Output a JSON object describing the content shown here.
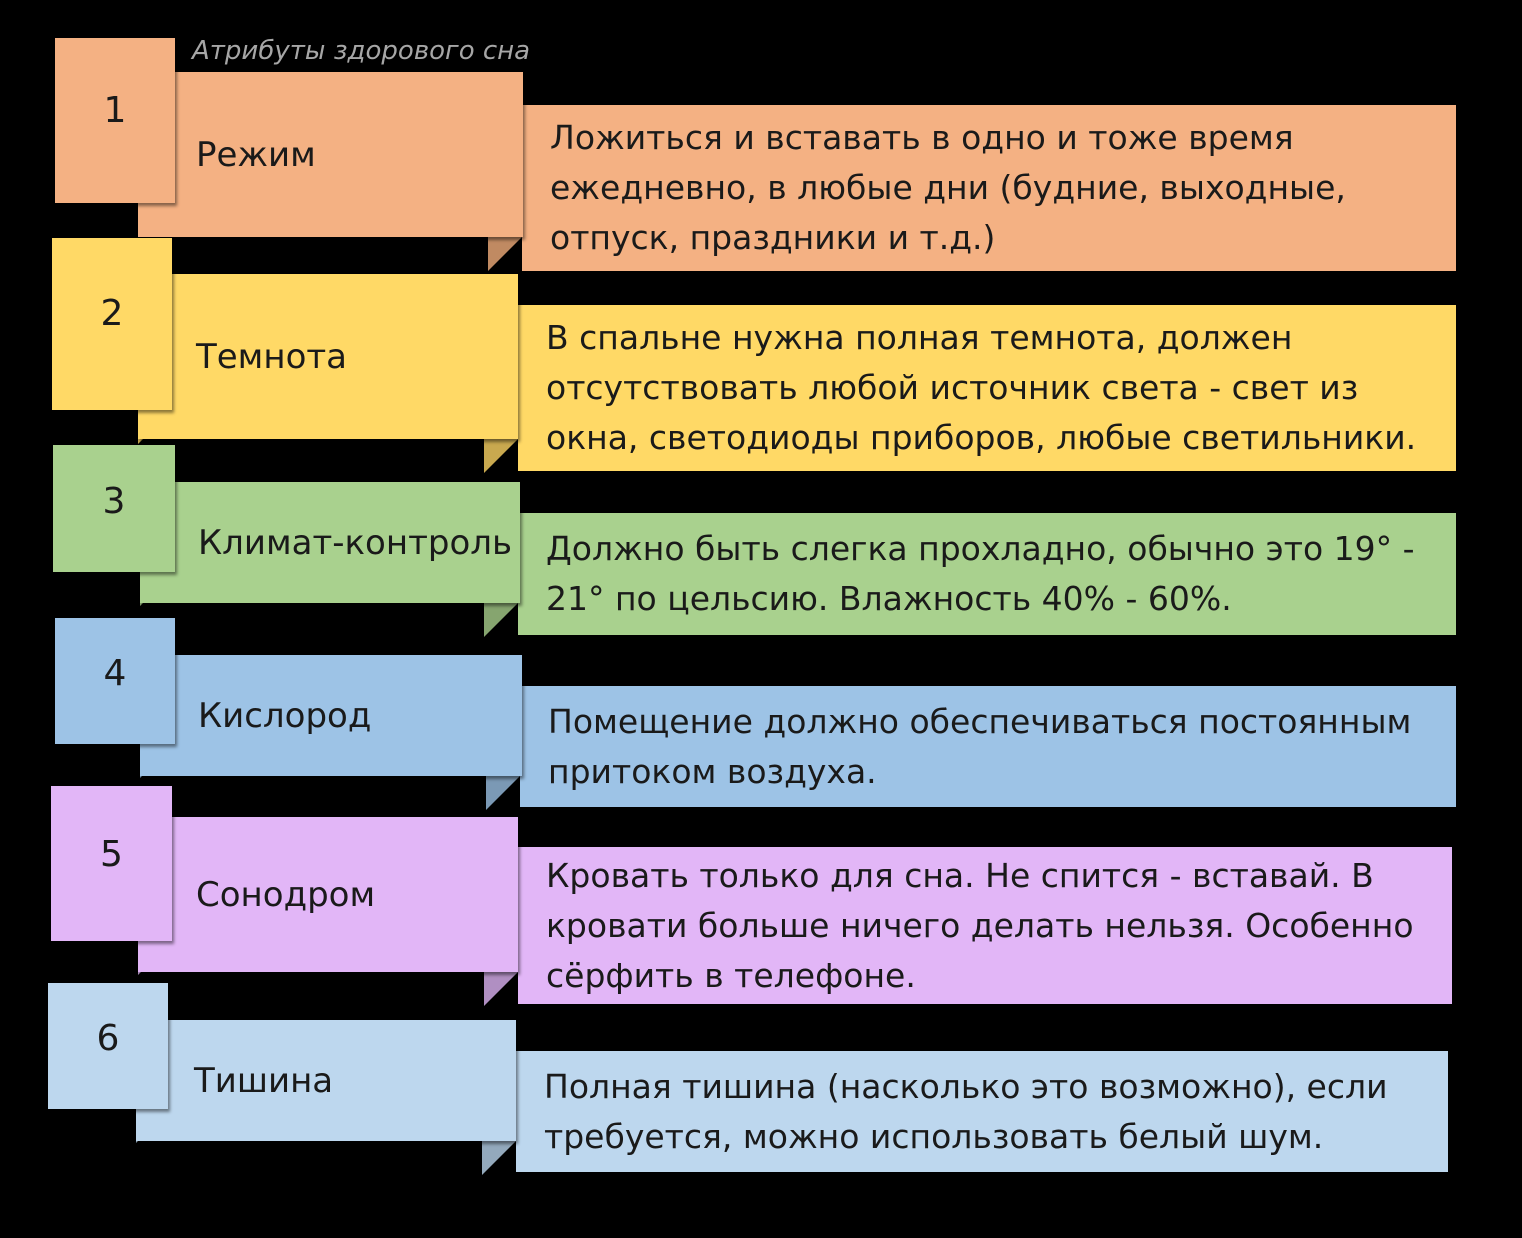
{
  "title": "Атрибуты здорового сна",
  "items": [
    {
      "number": "1",
      "label": "Режим",
      "description": "Ложиться и вставать в одно и тоже время ежедневно, в любые дни (будние, выходные, отпуск, праздники и т.д.)",
      "color": "#f4b183",
      "fold_color": "#c08a62"
    },
    {
      "number": "2",
      "label": "Темнота",
      "description": "В спальне нужна полная темнота, должен отсутствовать любой источник света - свет из окна, светодиоды приборов, любые светильники.",
      "color": "#ffd966",
      "fold_color": "#c9a94f"
    },
    {
      "number": "3",
      "label": "Климат-контроль",
      "description": "Должно быть слегка прохладно, обычно это 19° - 21° по цельсию. Влажность 40% - 60%.",
      "color": "#a9d18e",
      "fold_color": "#86a56f"
    },
    {
      "number": "4",
      "label": "Кислород",
      "description": "Помещение должно обеспечиваться постоянным притоком воздуха.",
      "color": "#9dc3e6",
      "fold_color": "#7b99b5"
    },
    {
      "number": "5",
      "label": "Сонодром",
      "description": "Кровать только для сна. Не спится - вставай. В кровати больше ничего делать нельзя. Особенно сёрфить в телефоне.",
      "color": "#e2b6f7",
      "fold_color": "#b08fc2"
    },
    {
      "number": "6",
      "label": "Тишина",
      "description": "Полная тишина (насколько это возможно), если требуется, можно использовать белый шум.",
      "color": "#bdd7ee",
      "fold_color": "#93a9bc"
    }
  ]
}
